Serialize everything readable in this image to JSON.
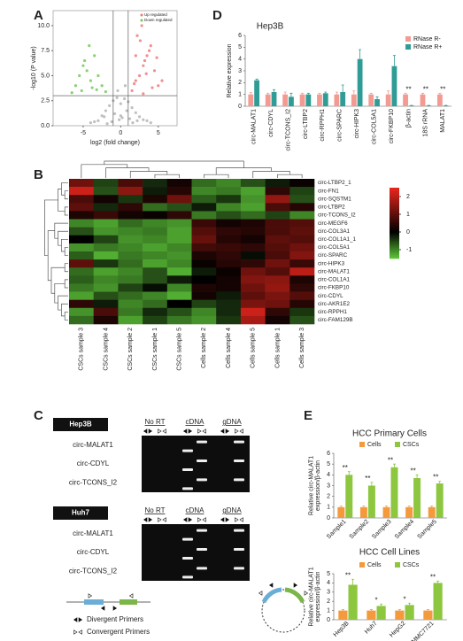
{
  "panel_labels": [
    "A",
    "B",
    "C",
    "D",
    "E"
  ],
  "chart_data": [
    {
      "type": "scatter",
      "xlabel": "log2 (fold change)",
      "ylabel": "-log10 (P value)",
      "xlim": [
        -9,
        7.5
      ],
      "ylim": [
        0,
        11.5
      ],
      "xticks": [
        -5,
        0,
        5
      ],
      "yticks": [
        {
          "value": 0,
          "label": "0.0"
        },
        {
          "value": 2.5,
          "label": "2.5"
        },
        {
          "value": 5,
          "label": "5.0"
        },
        {
          "value": 7.5,
          "label": "7.5"
        },
        {
          "value": 10,
          "label": "10.0"
        }
      ],
      "thresholds": {
        "x": [
          -1,
          1
        ],
        "y": 3
      },
      "legend": "upper right",
      "series": [
        {
          "name": "Up regulated",
          "color": "#f07a7a",
          "x": [
            1.5,
            2,
            2.5,
            3,
            3.5,
            4,
            4.5,
            5,
            2.2,
            2.8,
            3.2,
            3.8,
            4.2,
            1.8,
            2.6,
            3.4,
            4.8,
            5.5,
            2,
            3
          ],
          "y": [
            3.5,
            4.5,
            5,
            6,
            7,
            8,
            5.5,
            4,
            9,
            10,
            6.5,
            7.5,
            3.8,
            4.2,
            8.5,
            5.2,
            6.8,
            4.5,
            7,
            3.2
          ]
        },
        {
          "name": "Down regulated",
          "color": "#74c95a",
          "x": [
            -6,
            -5.5,
            -5,
            -4.5,
            -4,
            -3.5,
            -3,
            -2.5,
            -5.2,
            -4.8,
            -4.2,
            -3.8,
            -6.5,
            -3.2,
            -2
          ],
          "y": [
            4,
            5,
            6,
            5.5,
            4.5,
            7,
            5,
            4,
            3.5,
            6.5,
            8,
            3.8,
            3.3,
            3.6,
            3.4
          ]
        },
        {
          "color": "#b5b5b5",
          "x": [
            -3,
            -2.5,
            -2,
            -1.5,
            -1,
            -0.5,
            0,
            0.5,
            1,
            1.5,
            2,
            2.5,
            3,
            -4,
            -3.5,
            4,
            3.5,
            -0.8,
            0.8,
            0.2,
            -0.2,
            -1.2,
            1.2,
            -2.2,
            2.2,
            0,
            -0.4,
            0.6,
            -1.8,
            1.6
          ],
          "y": [
            0.5,
            1,
            1.5,
            2,
            2.5,
            2.8,
            2.2,
            2.7,
            2.4,
            1.8,
            1.3,
            0.9,
            0.6,
            0.3,
            0.4,
            0.3,
            0.5,
            1.2,
            1.5,
            0.8,
            0.6,
            0.4,
            0.7,
            0.9,
            0.5,
            1,
            3.5,
            4,
            0.2,
            0.3
          ]
        }
      ]
    },
    {
      "type": "bar",
      "title": "Hep3B",
      "ylabel": [
        "Relative expression"
      ],
      "legend": "upper right",
      "categories": [
        "circ-MALAT1",
        "circ-CDYL",
        "circ-TCONS_I2",
        "circ-LTBP2",
        "circ-RPPH1",
        "circ-SPARC",
        "circ-HIPK3",
        "circ-COL5A1",
        "circ-FKBP10",
        "β-actin",
        "18S rRNA",
        "MALAT1"
      ],
      "ylim": [
        0,
        6
      ],
      "yticks": [
        0,
        1,
        2,
        3,
        4,
        5,
        6
      ],
      "series": [
        {
          "name": "RNase R-",
          "color": "#f39a92",
          "values": [
            1,
            1,
            1,
            1,
            1,
            1,
            1,
            1,
            1,
            1,
            1,
            1
          ],
          "errors": [
            0.15,
            0.1,
            0.2,
            0.1,
            0.1,
            0.2,
            0.3,
            0.1,
            0.3,
            0.1,
            0.1,
            0.1
          ]
        },
        {
          "name": "RNase R+",
          "color": "#2f9c95",
          "values": [
            2.2,
            1.2,
            0.8,
            1,
            1.1,
            1.2,
            4,
            0.6,
            3.4,
            0.05,
            0.05,
            0.05
          ],
          "errors": [
            0.1,
            0.2,
            0.3,
            0.1,
            0.1,
            0.6,
            0.8,
            0.2,
            0.9,
            0.02,
            0.02,
            0.02
          ]
        }
      ],
      "significance": [
        null,
        null,
        null,
        null,
        null,
        null,
        null,
        null,
        null,
        "**",
        "**",
        "**"
      ]
    },
    {
      "type": "heatmap",
      "rows": [
        "circ-LTBP2_1",
        "circ-FN1",
        "circ-SQSTM1",
        "circ-LTBP2",
        "circ-TCONS_I2",
        "circ-MEGF6",
        "circ-COL3A1",
        "circ-COL1A1_1",
        "circ-COL5A1",
        "circ-SPARC",
        "circ-HIPK3",
        "circ-MALAT1",
        "circ-COL1A1",
        "circ-FKBP10",
        "circ-CDYL",
        "circ-AKR1E2",
        "circ-RPPH1",
        "circ-FAM129B"
      ],
      "columns": [
        "CSCs sample 3",
        "CSCs sample 4",
        "CSCs sample 2",
        "CSCs sample 1",
        "CSCs sample 5",
        "Cells sample 2",
        "Cells sample 4",
        "Cells sample 5",
        "Cells sample 1",
        "Cells sample 3"
      ],
      "values": [
        [
          1.2,
          -0.5,
          0.8,
          -0.3,
          0.2,
          -0.8,
          -1,
          -0.6,
          -0.2,
          0.1
        ],
        [
          2.2,
          -0.6,
          1.5,
          -0.2,
          0.4,
          -1,
          -0.9,
          -1.2,
          0.5,
          -0.5
        ],
        [
          0.8,
          0.2,
          -0.4,
          0.3,
          1.2,
          -0.7,
          -0.4,
          -1.1,
          1.6,
          -0.6
        ],
        [
          1,
          -0.3,
          0.5,
          -0.8,
          -0.6,
          -0.2,
          -1,
          -1.2,
          0.8,
          0.4
        ],
        [
          0.3,
          0.6,
          0.2,
          0.1,
          0.5,
          -0.9,
          -0.6,
          -0.8,
          -0.5,
          -1
        ],
        [
          -1,
          -1.2,
          -0.8,
          -1,
          -1.1,
          0.6,
          0.2,
          0.3,
          0.8,
          0.9
        ],
        [
          -0.6,
          -1.1,
          -1,
          -0.9,
          -1.2,
          0.9,
          0.5,
          0.4,
          0.8,
          1
        ],
        [
          0,
          -0.5,
          -1.1,
          -1,
          -1.2,
          1.1,
          0.4,
          0.2,
          1,
          0.9
        ],
        [
          -1.1,
          -0.9,
          -1,
          -1.2,
          -1,
          0.7,
          0.6,
          0.5,
          0.9,
          1.2
        ],
        [
          -0.7,
          -1.3,
          -0.9,
          -1,
          -1.1,
          0.3,
          0.5,
          -0.1,
          0.8,
          1.4
        ],
        [
          1,
          -0.4,
          -0.8,
          -1.2,
          -1,
          0.1,
          0.4,
          0.5,
          1.2,
          0.6
        ],
        [
          -0.8,
          -1.2,
          -1,
          -0.6,
          -1.3,
          -0.2,
          0.1,
          1.2,
          0.9,
          2
        ],
        [
          -0.7,
          -1,
          -0.9,
          -0.6,
          -0.2,
          0,
          0.2,
          1.4,
          1.5,
          0.3
        ],
        [
          -0.9,
          -1.1,
          -0.5,
          -0.1,
          -1,
          0.3,
          0.2,
          1.2,
          1.6,
          0.5
        ],
        [
          -1.2,
          -0.6,
          -0.8,
          -1,
          -1.3,
          0.2,
          -0.2,
          1,
          1.3,
          0.9
        ],
        [
          0.5,
          -0.2,
          -1,
          -0.8,
          0,
          -0.5,
          -0.3,
          1.3,
          1.2,
          0.4
        ],
        [
          -1.1,
          0.8,
          -0.9,
          -0.3,
          -0.6,
          -1,
          -0.3,
          2.2,
          0.5,
          -0.4
        ],
        [
          -0.8,
          0.3,
          -1.2,
          -0.5,
          -0.9,
          -1.1,
          -0.4,
          1.8,
          0.2,
          -0.6
        ]
      ],
      "zlim": [
        -1.5,
        2.5
      ],
      "zticks": [
        -1,
        0,
        1,
        2
      ],
      "colors": {
        "low": "#5fc93a",
        "mid": "#000000",
        "high": "#e8261c"
      }
    },
    {
      "type": "bar",
      "title": "HCC Primary Cells",
      "ylabel": [
        "Relative circ-MALAT1",
        "expression/β-actin"
      ],
      "legend": "upper center",
      "categories": [
        "Sample1",
        "Sample2",
        "Sample3",
        "Sample4",
        "Sample5"
      ],
      "ylim": [
        0,
        6
      ],
      "yticks": [
        0,
        1,
        2,
        3,
        4,
        5,
        6
      ],
      "series": [
        {
          "name": "Cells",
          "color": "#f49a3c",
          "values": [
            1,
            1,
            1,
            1,
            1
          ],
          "errors": [
            0.1,
            0.1,
            0.1,
            0.1,
            0.1
          ]
        },
        {
          "name": "CSCs",
          "color": "#8dc63f",
          "values": [
            4,
            3,
            4.7,
            3.7,
            3.2
          ],
          "errors": [
            0.3,
            0.3,
            0.3,
            0.3,
            0.2
          ]
        }
      ],
      "significance": [
        "**",
        "**",
        "**",
        "**",
        "**"
      ]
    },
    {
      "type": "bar",
      "title": "HCC Cell Lines",
      "ylabel": [
        "Relative circ-MALAT1",
        "expression/β-actin"
      ],
      "legend": "upper center",
      "categories": [
        "Hep3B",
        "Huh7",
        "HepG2",
        "SMMC7721"
      ],
      "ylim": [
        0,
        5
      ],
      "yticks": [
        0,
        1,
        2,
        3,
        4,
        5
      ],
      "series": [
        {
          "name": "Cells",
          "color": "#f49a3c",
          "values": [
            1,
            1,
            1,
            1
          ],
          "errors": [
            0.1,
            0.1,
            0.1,
            0.1
          ]
        },
        {
          "name": "CSCs",
          "color": "#8dc63f",
          "values": [
            3.8,
            1.5,
            1.6,
            4
          ],
          "errors": [
            0.6,
            0.2,
            0.2,
            0.2
          ]
        }
      ],
      "significance": [
        "**",
        "*",
        "*",
        "**"
      ]
    }
  ],
  "gel_panel": {
    "columns": [
      "No RT",
      "cDNA",
      "gDNA"
    ],
    "blocks": [
      {
        "cell_line": "Hep3B",
        "rows": [
          "circ-MALAT1",
          "circ-CDYL",
          "circ-TCONS_I2"
        ]
      },
      {
        "cell_line": "Huh7",
        "rows": [
          "circ-MALAT1",
          "circ-CDYL",
          "circ-TCONS_I2"
        ]
      }
    ],
    "legend": [
      "Divergent Primers",
      "Convergent Primers"
    ]
  }
}
